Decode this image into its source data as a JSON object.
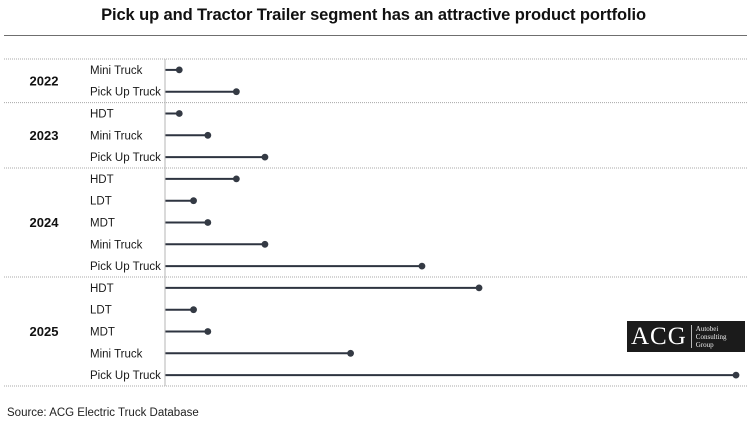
{
  "title": "Pick up and Tractor Trailer segment has an attractive product portfolio",
  "source": "Source: ACG Electric Truck Database",
  "logo": {
    "mark": "ACG",
    "line1": "Autobei",
    "line2": "Consulting",
    "line3": "Group"
  },
  "colors": {
    "line": "#2e3440",
    "dot": "#343a44",
    "divider": "#a8a8a8"
  },
  "chart_data": {
    "type": "lollipop",
    "x_axis": "hidden",
    "groups": [
      {
        "year": "2022",
        "items": [
          {
            "label": "Mini Truck",
            "value": 2
          },
          {
            "label": "Pick Up Truck",
            "value": 10
          }
        ]
      },
      {
        "year": "2023",
        "items": [
          {
            "label": "HDT",
            "value": 2
          },
          {
            "label": "Mini Truck",
            "value": 6
          },
          {
            "label": "Pick Up Truck",
            "value": 14
          }
        ]
      },
      {
        "year": "2024",
        "items": [
          {
            "label": "HDT",
            "value": 10
          },
          {
            "label": "LDT",
            "value": 4
          },
          {
            "label": "MDT",
            "value": 6
          },
          {
            "label": "Mini Truck",
            "value": 14
          },
          {
            "label": "Pick Up Truck",
            "value": 36
          }
        ]
      },
      {
        "year": "2025",
        "items": [
          {
            "label": "HDT",
            "value": 44
          },
          {
            "label": "LDT",
            "value": 4
          },
          {
            "label": "MDT",
            "value": 6
          },
          {
            "label": "Mini Truck",
            "value": 26
          },
          {
            "label": "Pick Up Truck",
            "value": 80
          }
        ]
      }
    ]
  }
}
